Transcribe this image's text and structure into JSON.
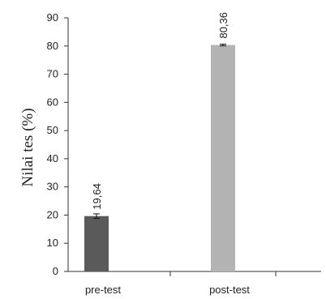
{
  "chart_data": {
    "type": "bar",
    "title": "",
    "xlabel": "",
    "ylabel": "Nilai tes (%)",
    "ylim": [
      0,
      90
    ],
    "yticks": [
      0,
      10,
      20,
      30,
      40,
      50,
      60,
      70,
      80,
      90
    ],
    "categories": [
      "pre-test",
      "post-test"
    ],
    "values": [
      19.64,
      80.36
    ],
    "data_labels": [
      "19,64",
      "80,36"
    ],
    "error": [
      0.8,
      0.3
    ],
    "colors": [
      "#5a5a5a",
      "#b3b3b3"
    ],
    "grid": false,
    "legend": "none"
  }
}
